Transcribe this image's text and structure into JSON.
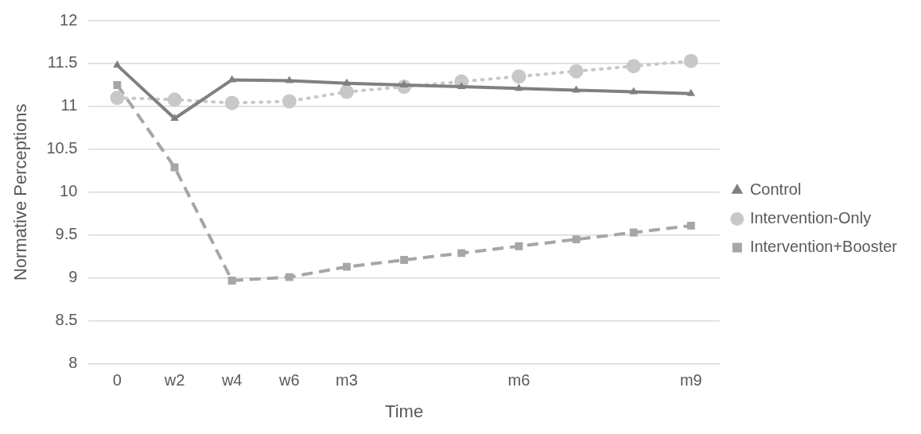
{
  "chart_data": {
    "type": "line",
    "xlabel": "Time",
    "ylabel": "Normative Perceptions",
    "categories": [
      "0",
      "w2",
      "w4",
      "w6",
      "m3",
      null,
      null,
      "m6",
      null,
      null,
      "m9"
    ],
    "ylim": [
      8,
      12
    ],
    "yticks": [
      8,
      8.5,
      9,
      9.5,
      10,
      10.5,
      11,
      11.5,
      12
    ],
    "grid": "y",
    "legend": "right",
    "series": [
      {
        "name": "Control",
        "color": "#808080",
        "marker": "triangle",
        "line_style": "solid",
        "values": [
          11.48,
          10.86,
          11.31,
          11.3,
          11.27,
          11.25,
          11.23,
          11.21,
          11.19,
          11.17,
          11.15
        ]
      },
      {
        "name": "Intervention-Only",
        "color": "#c8c8c8",
        "marker": "circle",
        "line_style": "dotted",
        "values": [
          11.1,
          11.08,
          11.04,
          11.06,
          11.17,
          11.23,
          11.29,
          11.35,
          11.41,
          11.47,
          11.53
        ]
      },
      {
        "name": "Intervention+Booster",
        "color": "#a6a6a6",
        "marker": "square",
        "line_style": "dashed",
        "values": [
          11.25,
          10.29,
          8.97,
          9.01,
          9.13,
          9.21,
          9.29,
          9.37,
          9.45,
          9.53,
          9.61
        ]
      }
    ]
  }
}
